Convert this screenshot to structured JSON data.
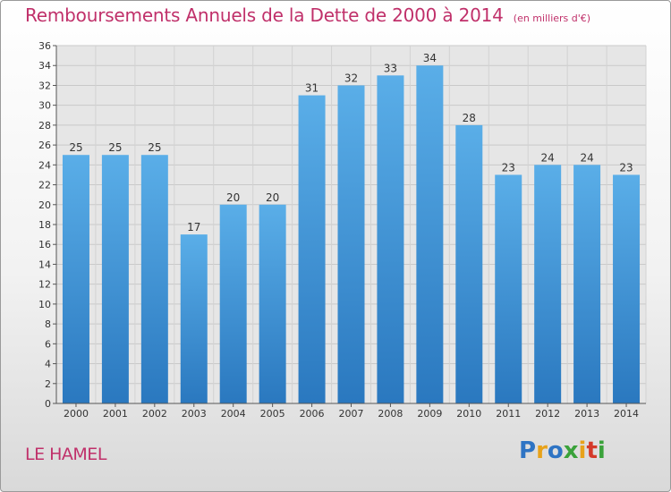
{
  "chart_data": {
    "type": "bar",
    "title": "Remboursements Annuels de la Dette de 2000 à 2014",
    "subtitle": "(en milliers d'€)",
    "categories": [
      "2000",
      "2001",
      "2002",
      "2003",
      "2004",
      "2005",
      "2006",
      "2007",
      "2008",
      "2009",
      "2010",
      "2011",
      "2012",
      "2013",
      "2014"
    ],
    "values": [
      25,
      25,
      25,
      17,
      20,
      20,
      31,
      32,
      33,
      34,
      28,
      23,
      24,
      24,
      23
    ],
    "ylim": [
      0,
      36
    ],
    "yticks": [
      0,
      2,
      4,
      6,
      8,
      10,
      12,
      14,
      16,
      18,
      20,
      22,
      24,
      26,
      28,
      30,
      32,
      34,
      36
    ],
    "xlabel": "",
    "ylabel": "",
    "grid": true,
    "bar_color": "#3d8fd6"
  },
  "footer": {
    "commune": "LE HAMEL",
    "logo": [
      "P",
      "r",
      "o",
      "x",
      "i",
      "t",
      "i"
    ]
  },
  "colors": {
    "title": "#c0306a",
    "logo": [
      "#2e74c4",
      "#e8a21a",
      "#2e74c4",
      "#3aa23a",
      "#e8a21a",
      "#d43a2a",
      "#3aa23a"
    ]
  }
}
